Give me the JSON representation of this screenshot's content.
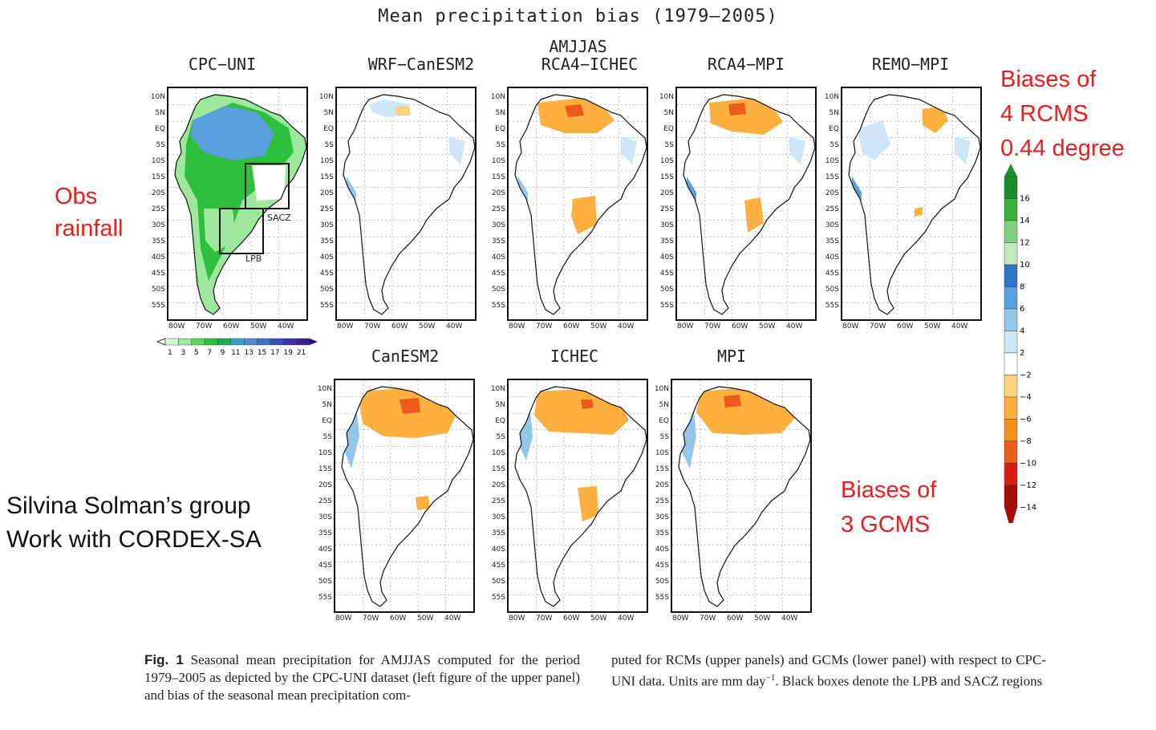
{
  "figure": {
    "title": "Mean precipitation bias (1979–2005)",
    "season": "AMJJAS"
  },
  "panels": [
    {
      "id": "cpc-uni",
      "label": "CPC−UNI"
    },
    {
      "id": "wrf-canesm2",
      "label": "WRF−CanESM2"
    },
    {
      "id": "rca4-ichec",
      "label": "RCA4−ICHEC"
    },
    {
      "id": "rca4-mpi",
      "label": "RCA4−MPI"
    },
    {
      "id": "remo-mpi",
      "label": "REMO−MPI"
    },
    {
      "id": "canesm2",
      "label": "CanESM2"
    },
    {
      "id": "ichec",
      "label": "ICHEC"
    },
    {
      "id": "mpi",
      "label": "MPI"
    }
  ],
  "lat_ticks": [
    "10N",
    "5N",
    "EQ",
    "5S",
    "10S",
    "15S",
    "20S",
    "25S",
    "30S",
    "35S",
    "40S",
    "45S",
    "50S",
    "55S"
  ],
  "lon_ticks": [
    "80W",
    "70W",
    "60W",
    "50W",
    "40W"
  ],
  "regions": {
    "sacz": "SACZ",
    "lpb": "LPB"
  },
  "obs_colorbar": {
    "labels": [
      "1",
      "3",
      "5",
      "7",
      "9",
      "11",
      "13",
      "15",
      "17",
      "19",
      "21"
    ],
    "colors": [
      "#d4f5d4",
      "#9ee89e",
      "#5ad65a",
      "#2fbf3f",
      "#22aa55",
      "#3aa0c8",
      "#4f8fd0",
      "#3f70c8",
      "#3550b8",
      "#3a30a8",
      "#3a1d8f"
    ]
  },
  "bias_colorbar": {
    "labels": [
      "16",
      "14",
      "12",
      "10",
      "8",
      "6",
      "4",
      "2",
      "−2",
      "−4",
      "−6",
      "−8",
      "−10",
      "−12",
      "−14"
    ],
    "colors": [
      "#1e8c2a",
      "#3cae3c",
      "#7fd17f",
      "#bfeabf",
      "#2f76c6",
      "#5aa0dc",
      "#94c6ea",
      "#cfe6f6",
      "#ffffff",
      "#ffd27f",
      "#fbb040",
      "#f5901e",
      "#ee5a1a",
      "#d91d14",
      "#a80a0a"
    ]
  },
  "annotations": {
    "obs_line1": "Obs",
    "obs_line2": "rainfall",
    "rcm_line1": "Biases of",
    "rcm_line2": "4 RCMS",
    "rcm_line3": "0.44 degree",
    "gcm_line1": "Biases of",
    "gcm_line2": "3 GCMS",
    "group_line1": "Silvina Solman’s group",
    "group_line2": "Work with CORDEX-SA"
  },
  "caption": {
    "label": "Fig. 1",
    "col1": "Seasonal mean precipitation for AMJJAS computed for the period 1979–2005 as depicted by the CPC-UNI dataset (left figure of the upper panel) and bias of the seasonal mean precipitation com-",
    "col2_a": "puted for RCMs (upper panels) and GCMs (lower panel) with respect to CPC-UNI data. Units are mm day",
    "col2_sup": "−1",
    "col2_b": ". Black boxes denote the LPB and SACZ regions"
  }
}
